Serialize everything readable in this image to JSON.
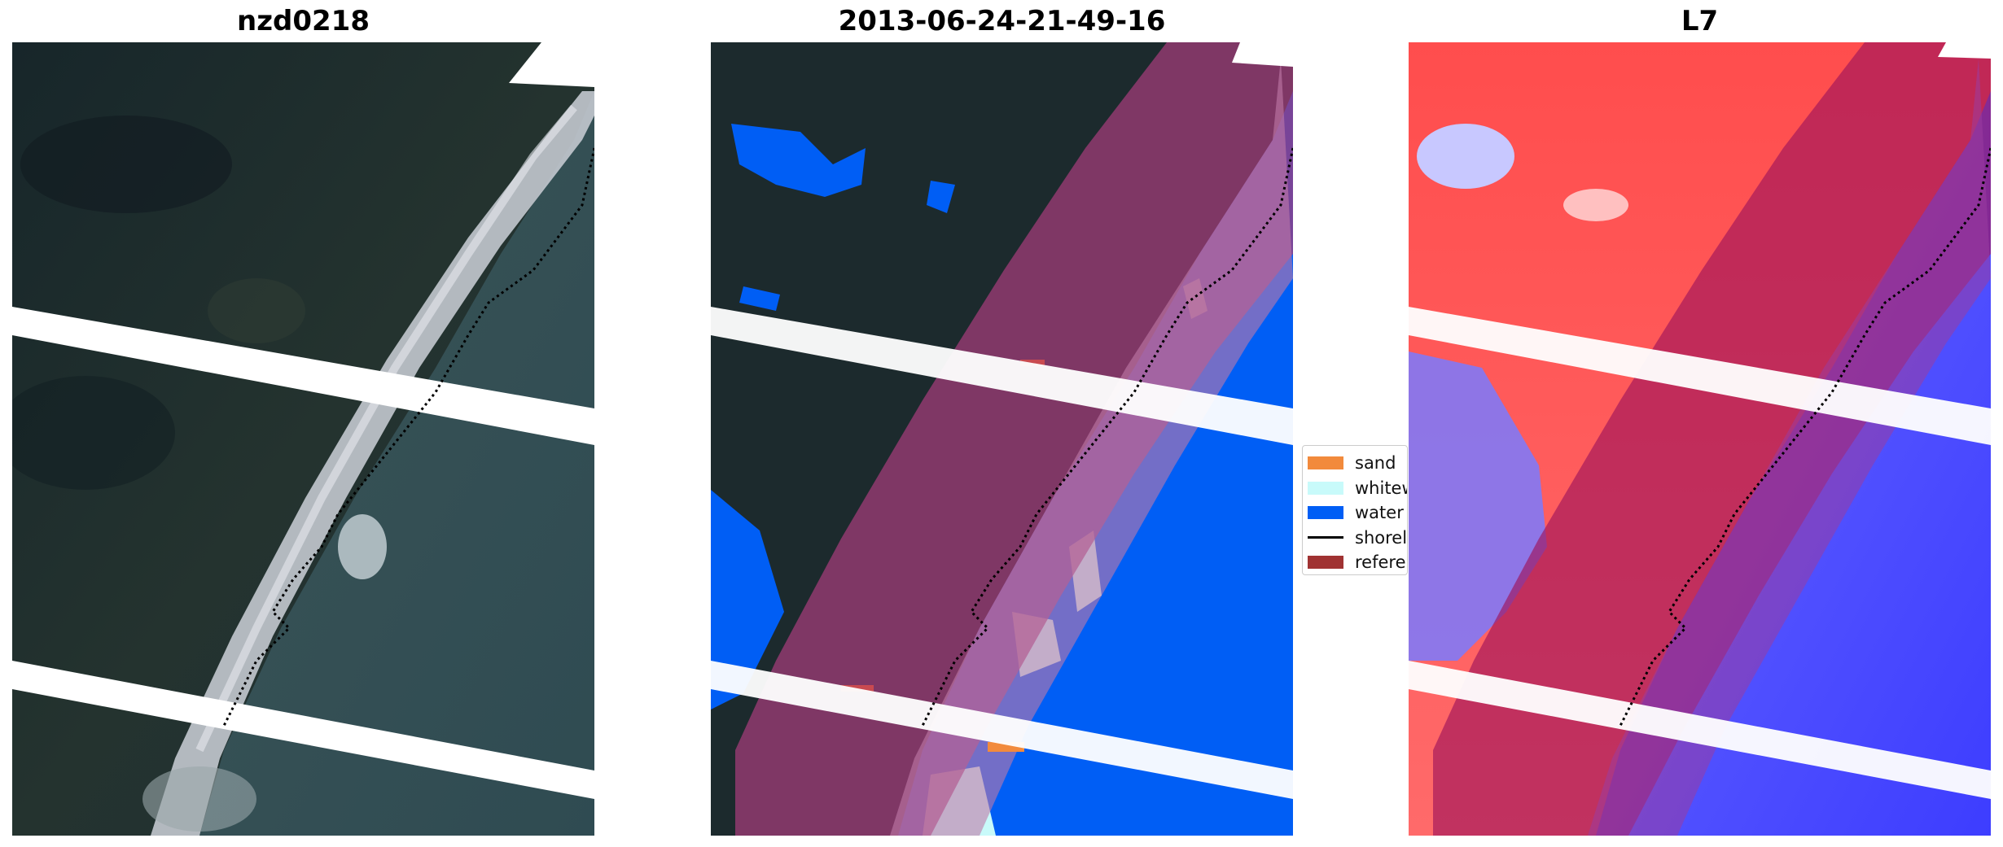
{
  "panels": [
    {
      "title": "nzd0218"
    },
    {
      "title": "2013-06-24-21-49-16"
    },
    {
      "title": "L7"
    }
  ],
  "legend": {
    "items": [
      {
        "label": "sand",
        "color": "#f28a3c",
        "kind": "patch"
      },
      {
        "label": "whitew",
        "color": "#c8fafa",
        "kind": "patch"
      },
      {
        "label": "water",
        "color": "#005ef5",
        "kind": "patch"
      },
      {
        "label": "shorel",
        "color": "#000000",
        "kind": "line"
      },
      {
        "label": "referen",
        "color": "#a03232",
        "kind": "patch"
      }
    ]
  },
  "colors": {
    "rgb_land": "#1c2a2a",
    "rgb_beach": "#c8ccd2",
    "rgb_water": "#3b5559",
    "class_water": "#005ef5",
    "class_whitewater": "#c8fafa",
    "class_sand": "#f28a3c",
    "reference_buffer": "#a03c78",
    "index_positive": "#ff3b3b",
    "index_negative": "#3c3cff"
  }
}
